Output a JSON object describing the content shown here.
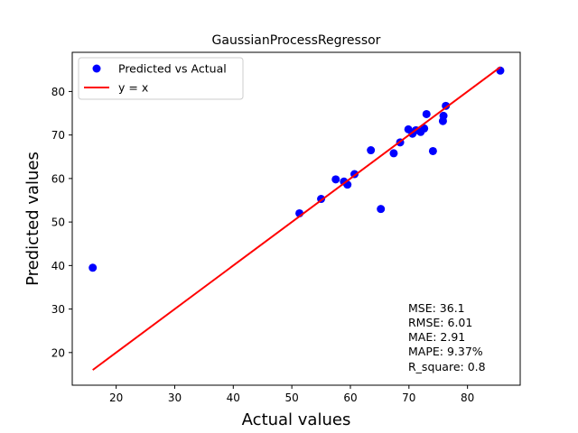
{
  "chart_data": {
    "type": "scatter",
    "title": "GaussianProcessRegressor",
    "xlabel": "Actual values",
    "ylabel": "Predicted values",
    "xlim": [
      12.5,
      89.0
    ],
    "ylim": [
      12.5,
      89.0
    ],
    "xticks": [
      20,
      30,
      40,
      50,
      60,
      70,
      80
    ],
    "yticks": [
      20,
      30,
      40,
      50,
      60,
      70,
      80
    ],
    "grid": false,
    "legend_position": "top-left",
    "series": [
      {
        "name": "Predicted vs Actual",
        "kind": "scatter",
        "color": "#0000ff",
        "points": [
          [
            16.0,
            39.5
          ],
          [
            51.3,
            52.0
          ],
          [
            55.0,
            55.3
          ],
          [
            57.5,
            59.8
          ],
          [
            58.9,
            59.3
          ],
          [
            59.5,
            58.6
          ],
          [
            60.7,
            61.0
          ],
          [
            63.5,
            66.5
          ],
          [
            65.2,
            53.0
          ],
          [
            67.4,
            65.8
          ],
          [
            68.5,
            68.3
          ],
          [
            69.9,
            71.3
          ],
          [
            70.6,
            70.3
          ],
          [
            71.2,
            71.1
          ],
          [
            72.0,
            70.7
          ],
          [
            72.6,
            71.5
          ],
          [
            73.0,
            74.8
          ],
          [
            74.1,
            66.3
          ],
          [
            75.8,
            73.2
          ],
          [
            75.9,
            74.4
          ],
          [
            76.3,
            76.7
          ],
          [
            85.6,
            84.8
          ]
        ]
      },
      {
        "name": "y = x",
        "kind": "line",
        "color": "#ff0000",
        "points": [
          [
            16.0,
            16.0
          ],
          [
            85.6,
            85.6
          ]
        ]
      }
    ],
    "annotations": [
      "MSE: 36.1",
      "RMSE: 6.01",
      "MAE: 2.91",
      "MAPE: 9.37%",
      "R_square: 0.8"
    ]
  }
}
